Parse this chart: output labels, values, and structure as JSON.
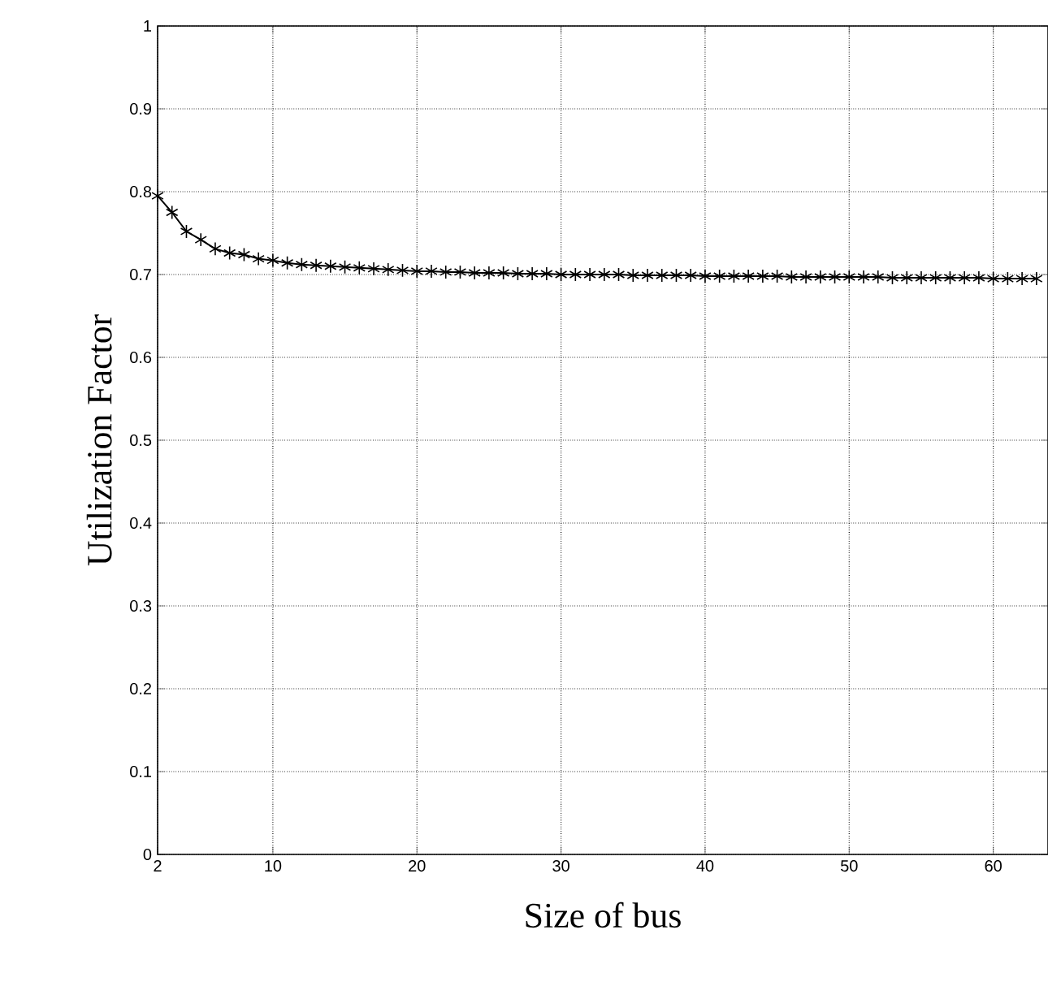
{
  "chart_data": {
    "type": "line",
    "xlabel": "Size of bus",
    "ylabel": "Utilization Factor",
    "x": [
      2,
      3,
      4,
      5,
      6,
      7,
      8,
      9,
      10,
      11,
      12,
      13,
      14,
      15,
      16,
      17,
      18,
      19,
      20,
      21,
      22,
      23,
      24,
      25,
      26,
      27,
      28,
      29,
      30,
      31,
      32,
      33,
      34,
      35,
      36,
      37,
      38,
      39,
      40,
      41,
      42,
      43,
      44,
      45,
      46,
      47,
      48,
      49,
      50,
      51,
      52,
      53,
      54,
      55,
      56,
      57,
      58,
      59,
      60,
      61,
      62,
      63
    ],
    "values": [
      0.795,
      0.775,
      0.752,
      0.742,
      0.731,
      0.726,
      0.724,
      0.719,
      0.717,
      0.714,
      0.712,
      0.711,
      0.71,
      0.709,
      0.708,
      0.707,
      0.706,
      0.705,
      0.704,
      0.704,
      0.703,
      0.703,
      0.702,
      0.702,
      0.702,
      0.701,
      0.701,
      0.701,
      0.7,
      0.7,
      0.7,
      0.7,
      0.7,
      0.699,
      0.699,
      0.699,
      0.699,
      0.699,
      0.698,
      0.698,
      0.698,
      0.698,
      0.698,
      0.698,
      0.697,
      0.697,
      0.697,
      0.697,
      0.697,
      0.697,
      0.697,
      0.696,
      0.696,
      0.696,
      0.696,
      0.696,
      0.696,
      0.696,
      0.695,
      0.695,
      0.695,
      0.695
    ],
    "color": "#000000",
    "marker": "cross",
    "line_style": "solid",
    "grid": true,
    "xlim": [
      2,
      63.8
    ],
    "ylim": [
      0,
      1
    ],
    "xticks": [
      2,
      10,
      20,
      30,
      40,
      50,
      60
    ],
    "yticks": [
      0,
      0.1,
      0.2,
      0.3,
      0.4,
      0.5,
      0.6,
      0.7,
      0.8,
      0.9,
      1
    ]
  }
}
